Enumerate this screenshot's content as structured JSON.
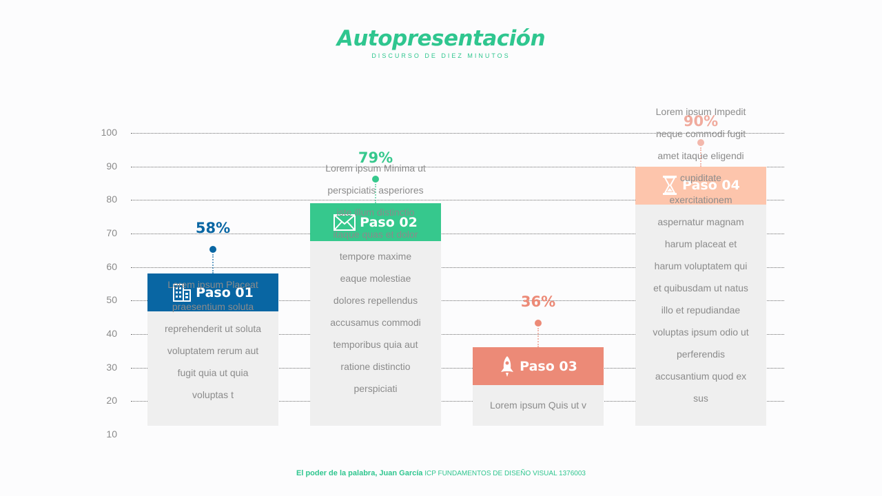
{
  "header": {
    "title": "Autopresentación",
    "subtitle": "DISCURSO DE DIEZ MINUTOS"
  },
  "footer": {
    "left": "El poder de la palabra, Juan García",
    "right": "ICP FUNDAMENTOS DE DISEÑO VISUAL 1376003"
  },
  "chart_data": {
    "type": "bar",
    "title": "",
    "ylim": [
      10,
      100
    ],
    "yticks": [
      100,
      90,
      80,
      70,
      60,
      50,
      40,
      30,
      20,
      10
    ],
    "grid": true,
    "categories": [
      "Paso 01",
      "Paso 02",
      "Paso 03",
      "Paso 04"
    ],
    "values": [
      58,
      79,
      36,
      90
    ],
    "percent_labels": [
      "58%",
      "79%",
      "36%",
      "90%"
    ],
    "texts": [
      "Lorem ipsum Placeat praesentium soluta reprehenderit ut soluta voluptatem rerum aut fugit quia ut quia voluptas t",
      "Lorem ipsum Minima ut perspiciatis asperiores iste illum distinctio itaque quas et dolor tempore maxime eaque molestiae dolores repellendus accusamus commodi temporibus quia aut ratione distinctio perspiciati",
      "Lorem ipsum Quis ut v",
      "Lorem ipsum Impedit neque commodi fugit amet itaque eligendi cupiditate exercitationem aspernatur magnam harum placeat et harum voluptatem qui et quibusdam ut natus illo et repudiandae voluptas ipsum odio ut perferendis accusantium quod ex sus"
    ],
    "colors": [
      "#0966a3",
      "#36c88d",
      "#ec8a77",
      "#fdc5ac"
    ],
    "icons": [
      "building-icon",
      "envelope-icon",
      "rocket-icon",
      "hourglass-icon"
    ]
  }
}
